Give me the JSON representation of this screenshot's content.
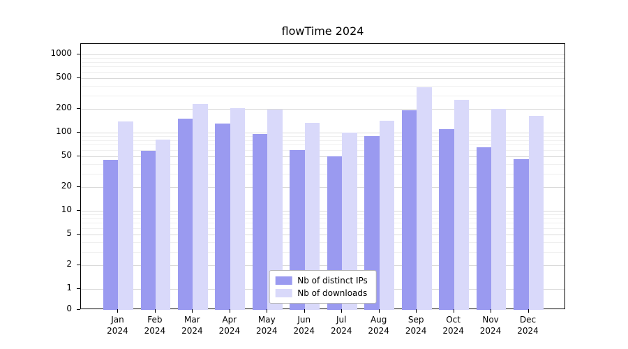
{
  "chart_data": {
    "type": "bar",
    "title": "flowTime 2024",
    "categories": [
      "Jan 2024",
      "Feb 2024",
      "Mar 2024",
      "Apr 2024",
      "May 2024",
      "Jun 2024",
      "Jul 2024",
      "Aug 2024",
      "Sep 2024",
      "Oct 2024",
      "Nov 2024",
      "Dec 2024"
    ],
    "series": [
      {
        "name": "Nb of distinct IPs",
        "color": "#9a9af0",
        "values": [
          45,
          58,
          150,
          130,
          95,
          60,
          50,
          90,
          195,
          110,
          65,
          46
        ]
      },
      {
        "name": "Nb of downloads",
        "color": "#d9d9fa",
        "values": [
          140,
          82,
          230,
          205,
          198,
          132,
          100,
          142,
          380,
          265,
          200,
          165
        ]
      }
    ],
    "yscale": "symlog",
    "yticks": [
      0,
      1,
      2,
      5,
      10,
      20,
      50,
      100,
      200,
      500,
      1000
    ],
    "yminorticks": [
      3,
      4,
      6,
      7,
      8,
      9,
      30,
      40,
      60,
      70,
      80,
      90,
      300,
      400,
      600,
      700,
      800,
      900
    ],
    "ylim": [
      0,
      1400
    ],
    "grid": true,
    "legend_position": "lower center",
    "bar_width": 0.4
  }
}
